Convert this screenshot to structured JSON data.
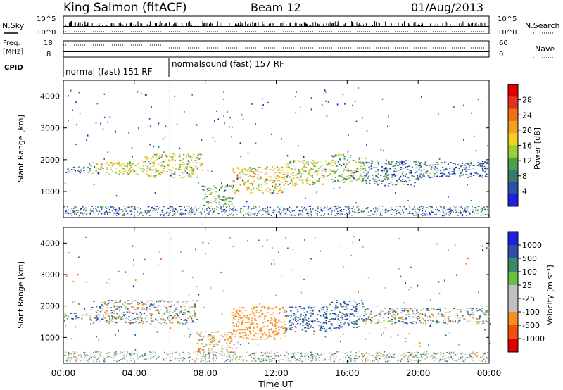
{
  "header": {
    "station": "King Salmon (fitACF)",
    "beam": "Beam 12",
    "date": "01/Aug/2013"
  },
  "nsky_panel": {
    "left_label": "N.Sky",
    "right_label": "N.Search",
    "left_ticks": [
      "10^5",
      "10^0"
    ],
    "right_ticks": [
      "10^5",
      "10^0"
    ]
  },
  "freq_panel": {
    "left_label_top": "Freq.",
    "left_label_unit": "[MHz]",
    "left_ticks": [
      "18",
      "8"
    ],
    "right_label": "Nave",
    "right_ticks": [
      "60",
      "0"
    ]
  },
  "cpid": {
    "label": "CPID",
    "segments": [
      {
        "text": "normal (fast) 151 RF",
        "start_hour": 0,
        "end_hour": 6
      },
      {
        "text": "normalsound (fast) 157 RF",
        "start_hour": 6,
        "end_hour": 24
      }
    ]
  },
  "colors": {
    "power_scale": [
      "#1f1fe0",
      "#2d4fa8",
      "#3a7a6a",
      "#4c9f4c",
      "#9bcf3a",
      "#f0d020",
      "#f5a020",
      "#f07018",
      "#e83020",
      "#e00000"
    ],
    "velocity_scale": [
      "#e00000",
      "#f05010",
      "#f59020",
      "#c0c0c0",
      "#c0c0c0",
      "#6ac040",
      "#3a8a6a",
      "#2d4fa8",
      "#1f1fe0"
    ]
  },
  "chart_data": [
    {
      "type": "heatmap",
      "title": "",
      "xlabel": "",
      "ylabel": "Slant Range [km]",
      "xlim": [
        0,
        24
      ],
      "ylim": [
        180,
        4500
      ],
      "yticks": [
        "1000",
        "2000",
        "3000",
        "4000"
      ],
      "colorbar": {
        "label": "Power [dB]",
        "ticks": [
          "28",
          "24",
          "20",
          "16",
          "12",
          "8",
          "4"
        ],
        "range": [
          0,
          30
        ]
      },
      "echo_regions": [
        {
          "start_hour": 0.0,
          "end_hour": 1.5,
          "range_low": 1600,
          "range_high": 1800,
          "level": 6
        },
        {
          "start_hour": 1.5,
          "end_hour": 4.5,
          "range_low": 1550,
          "range_high": 1950,
          "level": 13
        },
        {
          "start_hour": 4.5,
          "end_hour": 7.8,
          "range_low": 1450,
          "range_high": 2200,
          "level": 14
        },
        {
          "start_hour": 7.8,
          "end_hour": 9.5,
          "range_low": 550,
          "range_high": 1200,
          "level": 8
        },
        {
          "start_hour": 9.5,
          "end_hour": 12.5,
          "range_low": 950,
          "range_high": 1800,
          "level": 15
        },
        {
          "start_hour": 12.5,
          "end_hour": 15.0,
          "range_low": 1200,
          "range_high": 2000,
          "level": 12
        },
        {
          "start_hour": 15.0,
          "end_hour": 17.0,
          "range_low": 1300,
          "range_high": 2200,
          "level": 10
        },
        {
          "start_hour": 17.0,
          "end_hour": 20.0,
          "range_low": 1200,
          "range_high": 2000,
          "level": 5
        },
        {
          "start_hour": 20.0,
          "end_hour": 24.0,
          "range_low": 1450,
          "range_high": 1950,
          "level": 5
        }
      ]
    },
    {
      "type": "heatmap",
      "title": "",
      "xlabel": "Time UT",
      "ylabel": "Slant Range [km]",
      "xlim": [
        0,
        24
      ],
      "ylim": [
        180,
        4500
      ],
      "xticks": [
        "00:00",
        "04:00",
        "08:00",
        "12:00",
        "16:00",
        "20:00",
        "00:00"
      ],
      "yticks": [
        "1000",
        "2000",
        "3000",
        "4000"
      ],
      "colorbar": {
        "label": "Velocity [m s⁻¹]",
        "ticks": [
          "1000",
          "500",
          "100",
          "25",
          "-25",
          "-100",
          "-500",
          "-1000"
        ],
        "range": [
          -1000,
          1000
        ]
      },
      "echo_regions": [
        {
          "start_hour": 0.0,
          "end_hour": 1.5,
          "range_low": 1600,
          "range_high": 1800,
          "velocity": 0
        },
        {
          "start_hour": 1.5,
          "end_hour": 7.5,
          "range_low": 1450,
          "range_high": 2200,
          "velocity": 0
        },
        {
          "start_hour": 7.5,
          "end_hour": 9.5,
          "range_low": 550,
          "range_high": 1200,
          "velocity": -150
        },
        {
          "start_hour": 9.5,
          "end_hour": 12.5,
          "range_low": 950,
          "range_high": 2000,
          "velocity": -300
        },
        {
          "start_hour": 12.5,
          "end_hour": 15.0,
          "range_low": 1200,
          "range_high": 2000,
          "velocity": 200
        },
        {
          "start_hour": 15.0,
          "end_hour": 17.0,
          "range_low": 1300,
          "range_high": 2200,
          "velocity": 150
        },
        {
          "start_hour": 17.0,
          "end_hour": 24.0,
          "range_low": 1450,
          "range_high": 1950,
          "velocity": 0
        }
      ]
    }
  ]
}
